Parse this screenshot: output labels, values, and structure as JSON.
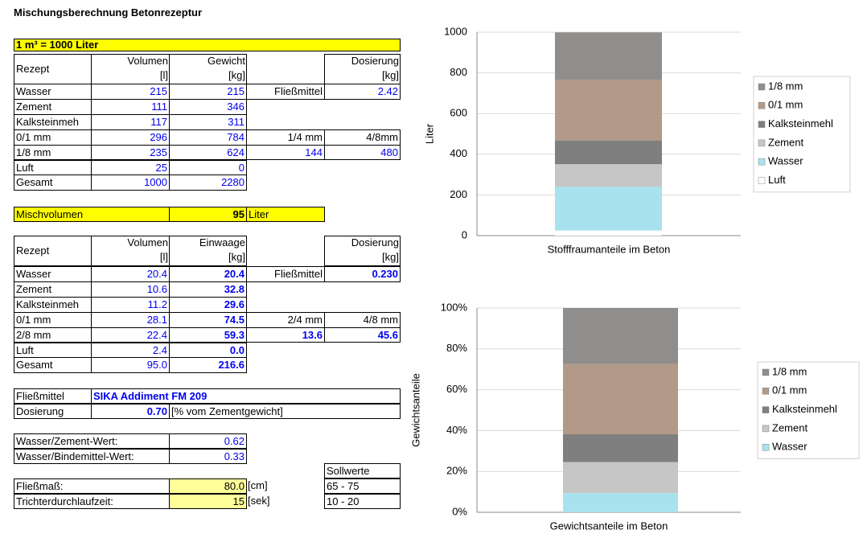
{
  "title": "Mischungsberechnung Betonrezeptur",
  "table1": {
    "caption": "1 m³ = 1000 Liter",
    "header": [
      "Rezept",
      "Volumen",
      "[l]",
      "Gewicht",
      "[kg]",
      "Dosierung",
      "[kg]"
    ],
    "rows": [
      [
        "Wasser",
        "215",
        "215",
        "Fließmittel",
        "2.42"
      ],
      [
        "Zement",
        "111",
        "346"
      ],
      [
        "Kalksteinmeh",
        "117",
        "311"
      ],
      [
        "0/1 mm",
        "296",
        "784",
        "1/4 mm",
        "4/8mm"
      ],
      [
        "1/8 mm",
        "235",
        "624",
        "144",
        "480"
      ],
      [
        "Luft",
        "25",
        "0"
      ],
      [
        "Gesamt",
        "1000",
        "2280"
      ]
    ]
  },
  "mischvolumen": {
    "label": "Mischvolumen",
    "value": "95",
    "unit": "Liter"
  },
  "table2": {
    "header": [
      "Rezept",
      "Volumen",
      "[l]",
      "Einwaage",
      "[kg]",
      "Dosierung",
      "[kg]"
    ],
    "rows": [
      [
        "Wasser",
        "20.4",
        "20.4",
        "Fließmittel",
        "0.230"
      ],
      [
        "Zement",
        "10.6",
        "32.8"
      ],
      [
        "Kalksteinmeh",
        "11.2",
        "29.6"
      ],
      [
        "0/1 mm",
        "28.1",
        "74.5",
        "2/4 mm",
        "4/8 mm"
      ],
      [
        "2/8 mm",
        "22.4",
        "59.3",
        "13.6",
        "45.6"
      ],
      [
        "Luft",
        "2.4",
        "0.0"
      ],
      [
        "Gesamt",
        "95.0",
        "216.6"
      ]
    ]
  },
  "product": {
    "rows": [
      [
        "Fließmittel",
        "SIKA Addiment FM 209"
      ],
      [
        "Dosierung",
        "0.70",
        "[% vom Zementgewicht]"
      ]
    ]
  },
  "ratios": {
    "rows": [
      [
        "Wasser/Zement-Wert:",
        "0.62"
      ],
      [
        "Wasser/Bindemittel-Wert:",
        "0.33"
      ]
    ]
  },
  "targets": {
    "header": "Sollwerte",
    "rows": [
      [
        "Fließmaß:",
        "80.0",
        "[cm]",
        "65 - 75"
      ],
      [
        "Trichterdurchlaufzeit:",
        "15",
        "[sek]",
        "10 - 20"
      ]
    ]
  },
  "chart_data": [
    {
      "type": "stacked-bar",
      "ylabel": "Liter",
      "categories": [
        "Stofffraumanteile im Beton"
      ],
      "ylim": [
        0,
        1000
      ],
      "yticks": [
        0,
        200,
        400,
        600,
        800,
        1000
      ],
      "grid": true,
      "legend": "right",
      "series": [
        {
          "name": "Luft",
          "color": "#ffffff",
          "values": [
            25
          ]
        },
        {
          "name": "Wasser",
          "color": "#a8e2ee",
          "values": [
            215
          ]
        },
        {
          "name": "Zement",
          "color": "#c6c6c6",
          "values": [
            111
          ]
        },
        {
          "name": "Kalksteinmehl",
          "color": "#7f7f7f",
          "values": [
            117
          ]
        },
        {
          "name": "0/1 mm",
          "color": "#b39a88",
          "values": [
            296
          ]
        },
        {
          "name": "1/8 mm",
          "color": "#8f8e8c",
          "values": [
            235
          ]
        }
      ]
    },
    {
      "type": "stacked-bar",
      "ylabel": "Gewichtsanteile",
      "categories": [
        "Gewichtsanteile im Beton"
      ],
      "ylim": [
        0,
        100
      ],
      "yticks": [
        {
          "value": 0,
          "label": "0%"
        },
        {
          "value": 20,
          "label": "20%"
        },
        {
          "value": 40,
          "label": "40%"
        },
        {
          "value": 60,
          "label": "60%"
        },
        {
          "value": 80,
          "label": "80%"
        },
        {
          "value": 100,
          "label": "100%"
        }
      ],
      "grid": true,
      "legend": "right",
      "series": [
        {
          "name": "Wasser",
          "color": "#a8e2ee",
          "values": [
            9.4
          ]
        },
        {
          "name": "Zement",
          "color": "#c6c6c6",
          "values": [
            15.2
          ]
        },
        {
          "name": "Kalksteinmehl",
          "color": "#7f7f7f",
          "values": [
            13.6
          ]
        },
        {
          "name": "0/1 mm",
          "color": "#b39a88",
          "values": [
            34.4
          ]
        },
        {
          "name": "1/8 mm",
          "color": "#8f8e8c",
          "values": [
            27.4
          ]
        }
      ]
    }
  ]
}
